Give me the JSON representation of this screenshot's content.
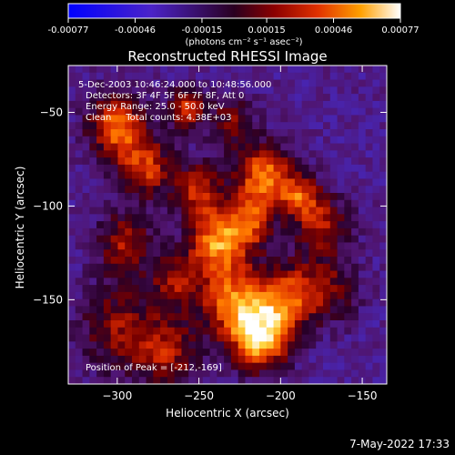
{
  "colorbar": {
    "ticks": [
      "-0.00077",
      "-0.00046",
      "-0.00015",
      "0.00015",
      "0.00046",
      "0.00077"
    ],
    "tick_values": [
      -0.00077,
      -0.00046,
      -0.00015,
      0.00015,
      0.00046,
      0.00077
    ],
    "range": [
      -0.00077,
      0.00077
    ],
    "unit_label": "(photons cm⁻² s⁻¹ asec⁻²)"
  },
  "chart_data": {
    "type": "heatmap",
    "title": "Reconstructed RHESSI Image",
    "xlabel": "Heliocentric X (arcsec)",
    "ylabel": "Heliocentric Y (arcsec)",
    "xlim": [
      -330,
      -135
    ],
    "ylim": [
      -195,
      -25
    ],
    "x_ticks": [
      -300,
      -250,
      -200,
      -150
    ],
    "y_ticks": [
      -50,
      -100,
      -150
    ],
    "colormap": "blue-purple-red-yellow-white",
    "annotations": [
      "5-Dec-2003 10:46:24.000 to 10:48:56.000",
      "Detectors: 3F 4F 5F 6F 7F 8F, Att 0",
      "Energy Range: 25.0 - 50.0 keV",
      "Clean     Total counts: 4.38E+03"
    ],
    "peak_label": "Position of Peak = [-212,-169]",
    "peak": [
      -212,
      -169
    ],
    "sources": [
      {
        "x": -212,
        "y": -169,
        "amp": 1.0,
        "w": 12
      },
      {
        "x": -230,
        "y": -150,
        "amp": 0.65,
        "w": 14
      },
      {
        "x": -195,
        "y": -148,
        "amp": 0.6,
        "w": 12
      },
      {
        "x": -240,
        "y": -120,
        "amp": 0.7,
        "w": 12
      },
      {
        "x": -210,
        "y": -85,
        "amp": 0.75,
        "w": 12
      },
      {
        "x": -250,
        "y": -92,
        "amp": 0.55,
        "w": 10
      },
      {
        "x": -300,
        "y": -58,
        "amp": 0.7,
        "w": 12
      },
      {
        "x": -282,
        "y": -80,
        "amp": 0.55,
        "w": 11
      },
      {
        "x": -258,
        "y": -48,
        "amp": 0.55,
        "w": 8
      },
      {
        "x": -295,
        "y": -120,
        "amp": 0.45,
        "w": 12
      },
      {
        "x": -300,
        "y": -165,
        "amp": 0.4,
        "w": 16
      },
      {
        "x": -270,
        "y": -178,
        "amp": 0.45,
        "w": 14
      },
      {
        "x": -175,
        "y": -110,
        "amp": 0.45,
        "w": 12
      },
      {
        "x": -170,
        "y": -145,
        "amp": 0.35,
        "w": 12
      },
      {
        "x": -230,
        "y": -55,
        "amp": 0.35,
        "w": 10
      },
      {
        "x": -188,
        "y": -95,
        "amp": 0.5,
        "w": 8
      },
      {
        "x": -220,
        "y": -110,
        "amp": 0.55,
        "w": 10
      },
      {
        "x": -265,
        "y": -140,
        "amp": 0.4,
        "w": 10
      }
    ]
  },
  "footer": {
    "timestamp": "7-May-2022 17:33"
  }
}
